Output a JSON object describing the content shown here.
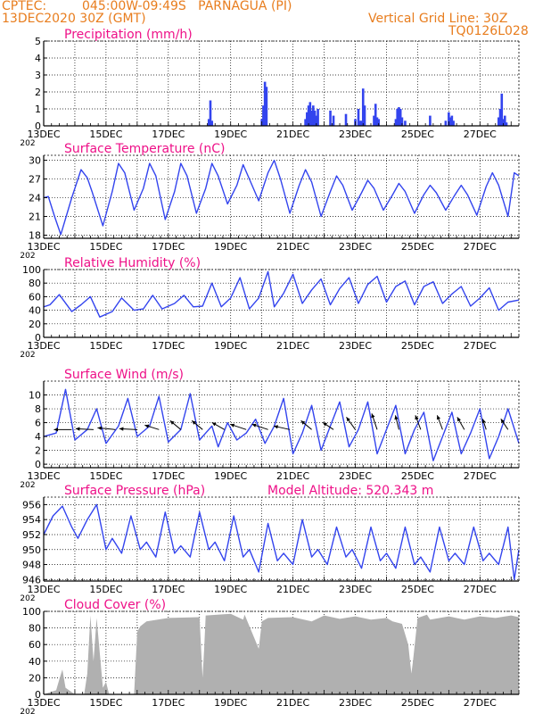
{
  "header": {
    "source": "CPTEC:",
    "location": "045:00W-09:49S   PARNAGUA (PI)",
    "date": "13DEC2020 30Z (GMT)",
    "grid_note": "Vertical Grid Line: 30Z",
    "code": "TQ0126L028"
  },
  "colors": {
    "line": "#3344ee",
    "cloud": "#b0b0b0",
    "title": "#ee1188",
    "header": "#e87d1e"
  },
  "x_ticks": [
    "13DEC",
    "15DEC",
    "17DEC",
    "19DEC",
    "21DEC",
    "23DEC",
    "25DEC",
    "27DEC"
  ],
  "x_sublabel": "202",
  "chart_data": [
    {
      "type": "bar",
      "title": "Precipitation (mm/h)",
      "ylim": [
        0,
        5
      ],
      "yticks": [
        0,
        1,
        2,
        3,
        4,
        5
      ],
      "x": [
        5.3,
        5.35,
        5.4,
        7.0,
        7.05,
        7.1,
        7.15,
        8.4,
        8.45,
        8.5,
        8.55,
        8.6,
        8.65,
        8.7,
        8.75,
        8.8,
        9.2,
        9.3,
        9.7,
        10.0,
        10.1,
        10.15,
        10.2,
        10.25,
        10.3,
        10.6,
        10.65,
        10.7,
        10.75,
        11.3,
        11.35,
        11.4,
        11.45,
        11.5,
        11.6,
        12.4,
        12.9,
        13.0,
        13.05,
        13.1,
        13.15,
        14.6,
        14.65,
        14.7,
        14.75,
        14.8,
        14.85
      ],
      "values": [
        0.4,
        1.5,
        0.3,
        0.4,
        1.2,
        2.6,
        2.3,
        0.4,
        0.8,
        1.2,
        1.4,
        0.9,
        1.2,
        0.9,
        0.6,
        1.0,
        0.9,
        0.6,
        0.7,
        0.4,
        1.0,
        0.3,
        0.3,
        2.2,
        1.2,
        0.6,
        1.3,
        0.5,
        0.4,
        0.4,
        1.0,
        1.1,
        1.0,
        0.5,
        0.3,
        0.6,
        0.3,
        0.8,
        0.5,
        0.6,
        0.3,
        0.5,
        1.0,
        1.9,
        0.4,
        0.6,
        0.2
      ]
    },
    {
      "type": "line",
      "title": "Surface Temperature (nC)",
      "ylim": [
        17.5,
        30.8
      ],
      "yticks": [
        18,
        21,
        24,
        27,
        30
      ],
      "x": [
        0,
        0.15,
        0.35,
        0.55,
        0.9,
        1.2,
        1.4,
        1.55,
        1.9,
        2.2,
        2.4,
        2.6,
        2.9,
        3.2,
        3.4,
        3.6,
        3.9,
        4.2,
        4.4,
        4.6,
        4.9,
        5.2,
        5.4,
        5.6,
        5.9,
        6.2,
        6.4,
        6.6,
        6.9,
        7.2,
        7.4,
        7.6,
        7.9,
        8.2,
        8.4,
        8.6,
        8.9,
        9.2,
        9.4,
        9.6,
        9.9,
        10.2,
        10.4,
        10.6,
        10.9,
        11.2,
        11.4,
        11.6,
        11.9,
        12.2,
        12.4,
        12.6,
        12.9,
        13.2,
        13.4,
        13.6,
        13.9,
        14.2,
        14.4,
        14.6,
        14.9,
        15.1,
        15.25
      ],
      "values": [
        24,
        24.2,
        21,
        18.1,
        24,
        28.5,
        27.2,
        25,
        19.5,
        25,
        29.5,
        28,
        22,
        25.5,
        29.5,
        27.5,
        20.5,
        25,
        29.5,
        27.5,
        21.5,
        25.5,
        29.5,
        27.5,
        23,
        26,
        29.3,
        27,
        23.5,
        28,
        30,
        27,
        21.5,
        26,
        28.5,
        26.5,
        21,
        25,
        27.5,
        26,
        22,
        24.8,
        26.8,
        25.5,
        22,
        24.5,
        26.3,
        25,
        21.5,
        24.5,
        26,
        24.8,
        22,
        24.5,
        26,
        24.5,
        21.2,
        25.8,
        28,
        26,
        21,
        28,
        27.5
      ]
    },
    {
      "type": "line",
      "title": "Relative Humidity (%)",
      "ylim": [
        0,
        100
      ],
      "yticks": [
        0,
        20,
        40,
        60,
        80,
        100
      ],
      "x": [
        0,
        0.2,
        0.5,
        0.9,
        1.2,
        1.5,
        1.8,
        2.2,
        2.5,
        2.9,
        3.2,
        3.5,
        3.8,
        4.2,
        4.5,
        4.8,
        5.1,
        5.4,
        5.7,
        6.0,
        6.3,
        6.6,
        6.9,
        7.2,
        7.4,
        7.7,
        8.0,
        8.3,
        8.6,
        8.9,
        9.2,
        9.5,
        9.8,
        10.1,
        10.4,
        10.7,
        11.0,
        11.3,
        11.6,
        11.9,
        12.2,
        12.5,
        12.8,
        13.1,
        13.4,
        13.7,
        14.0,
        14.3,
        14.6,
        14.9,
        15.25
      ],
      "values": [
        45,
        48,
        63,
        38,
        48,
        60,
        30,
        38,
        58,
        40,
        42,
        62,
        42,
        50,
        62,
        45,
        46,
        80,
        45,
        58,
        88,
        42,
        58,
        97,
        45,
        65,
        93,
        50,
        70,
        86,
        48,
        72,
        88,
        50,
        78,
        90,
        52,
        75,
        83,
        48,
        75,
        82,
        50,
        64,
        75,
        46,
        58,
        73,
        40,
        52,
        55
      ]
    },
    {
      "type": "line",
      "title": "Surface Wind (m/s)",
      "ylim": [
        -0.5,
        12
      ],
      "yticks": [
        0,
        2,
        4,
        6,
        8,
        10
      ],
      "x": [
        0,
        0.4,
        0.7,
        1.0,
        1.4,
        1.7,
        2.0,
        2.4,
        2.7,
        3.0,
        3.4,
        3.7,
        4.0,
        4.4,
        4.7,
        5.0,
        5.2,
        5.4,
        5.6,
        5.9,
        6.2,
        6.5,
        6.8,
        7.1,
        7.4,
        7.7,
        8.0,
        8.3,
        8.6,
        8.9,
        9.2,
        9.5,
        9.8,
        10.1,
        10.4,
        10.7,
        11.0,
        11.3,
        11.6,
        11.9,
        12.2,
        12.5,
        12.8,
        13.1,
        13.4,
        13.7,
        14.0,
        14.3,
        14.6,
        14.9,
        15.25
      ],
      "values": [
        4,
        4.5,
        10.8,
        3.5,
        5,
        8,
        3,
        5.5,
        9.5,
        4,
        5.5,
        9.8,
        3.2,
        5,
        10.2,
        3.5,
        4.5,
        5.5,
        2.5,
        6,
        3.5,
        4.5,
        6.5,
        3,
        5.5,
        9.5,
        1.5,
        4.5,
        8.5,
        2,
        5.5,
        9,
        2.5,
        5,
        9,
        1.5,
        5,
        8.5,
        1.5,
        5,
        7.5,
        0.5,
        4,
        7.5,
        1.5,
        4.5,
        8,
        0.8,
        4,
        8,
        3
      ]
    },
    {
      "type": "line",
      "title": "Surface Pressure (hPa)",
      "annotation": "Model Altitude: 520.343 m",
      "ylim": [
        945.8,
        957
      ],
      "yticks": [
        946,
        948,
        950,
        952,
        954,
        956
      ],
      "x": [
        0,
        0.3,
        0.6,
        0.9,
        1.1,
        1.4,
        1.7,
        2.0,
        2.2,
        2.5,
        2.8,
        3.1,
        3.3,
        3.6,
        3.9,
        4.2,
        4.4,
        4.7,
        5.0,
        5.3,
        5.5,
        5.8,
        6.1,
        6.4,
        6.6,
        6.9,
        7.2,
        7.5,
        7.7,
        8.0,
        8.3,
        8.6,
        8.8,
        9.1,
        9.4,
        9.7,
        9.9,
        10.2,
        10.5,
        10.8,
        11.0,
        11.3,
        11.6,
        11.9,
        12.1,
        12.4,
        12.7,
        13.0,
        13.2,
        13.5,
        13.8,
        14.1,
        14.3,
        14.6,
        14.9,
        15.1,
        15.25
      ],
      "values": [
        952,
        954.5,
        955.8,
        953,
        951.5,
        954,
        956,
        950,
        951.5,
        949.5,
        954.5,
        950,
        951,
        949,
        955,
        949.5,
        950.5,
        949,
        955,
        950,
        951,
        948.5,
        954.5,
        949,
        950,
        947,
        953.5,
        948.5,
        949.5,
        948,
        954,
        949,
        950,
        948,
        953,
        949,
        950,
        947.5,
        953,
        948.5,
        949.5,
        947.5,
        953,
        948,
        949,
        947,
        953,
        948.5,
        949.5,
        948,
        953,
        948.5,
        949.5,
        948,
        953,
        946,
        950
      ]
    },
    {
      "type": "area",
      "title": "Cloud Cover (%)",
      "ylim": [
        0,
        100
      ],
      "yticks": [
        0,
        20,
        40,
        60,
        80,
        100
      ],
      "x": [
        0,
        0.4,
        0.5,
        0.6,
        0.7,
        1.0,
        1.3,
        1.4,
        1.5,
        1.6,
        1.7,
        1.9,
        2.0,
        2.1,
        2.2,
        2.3,
        2.5,
        2.9,
        3.0,
        3.1,
        3.2,
        3.3,
        4.0,
        5.0,
        5.1,
        5.15,
        5.2,
        6.0,
        6.4,
        6.45,
        6.9,
        7.0,
        7.2,
        8.0,
        8.6,
        9.0,
        9.5,
        10.0,
        10.5,
        11.0,
        11.2,
        11.5,
        11.7,
        11.8,
        11.85,
        12.0,
        12.3,
        12.4,
        13.0,
        13.5,
        14.0,
        14.5,
        15.0,
        15.25
      ],
      "values": [
        0,
        5,
        18,
        30,
        8,
        0,
        0,
        25,
        95,
        40,
        92,
        8,
        15,
        0,
        0,
        0,
        0,
        0,
        75,
        82,
        85,
        88,
        92,
        93,
        20,
        55,
        95,
        97,
        90,
        96,
        55,
        88,
        92,
        93,
        88,
        95,
        91,
        94,
        90,
        92,
        88,
        85,
        60,
        25,
        40,
        92,
        96,
        90,
        94,
        90,
        94,
        92,
        95,
        93
      ]
    }
  ],
  "wind_vectors": {
    "x": [
      0.9,
      1.6,
      2.3,
      3.0,
      3.7,
      4.4,
      5.1,
      5.8,
      6.5,
      7.2,
      7.9,
      8.6,
      9.3,
      10.0,
      10.7,
      11.4,
      12.1,
      12.8,
      13.5,
      14.2,
      14.9
    ],
    "u": [
      -1.0,
      -1.0,
      -1.0,
      -1.0,
      -0.8,
      -0.6,
      -0.6,
      -0.7,
      -0.9,
      -0.9,
      -0.9,
      -0.6,
      -0.6,
      -0.5,
      -0.3,
      -0.2,
      -0.3,
      -0.3,
      -0.4,
      -0.2,
      -0.4
    ],
    "v": [
      0.0,
      0.05,
      0.1,
      0.05,
      0.25,
      0.5,
      0.5,
      0.4,
      0.3,
      0.3,
      0.2,
      0.5,
      0.4,
      0.7,
      0.9,
      0.8,
      0.8,
      0.8,
      0.7,
      0.6,
      0.6
    ]
  }
}
